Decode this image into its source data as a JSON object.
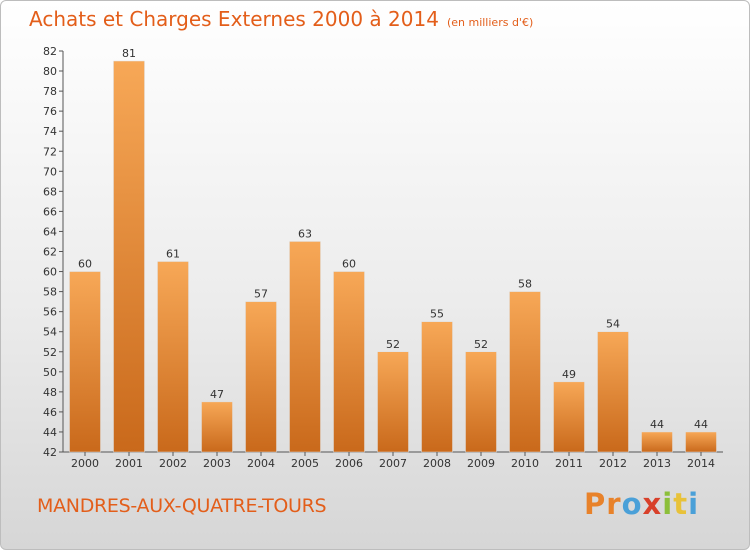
{
  "header": {
    "title": "Achats et Charges Externes 2000 à 2014",
    "subtitle": "(en milliers d'€)"
  },
  "footer": {
    "commune": "MANDRES-AUX-QUATRE-TOURS",
    "logo_letters": [
      "P",
      "r",
      "o",
      "x",
      "i",
      "t",
      "i"
    ],
    "logo_colors": [
      "#e8822a",
      "#e8822a",
      "#4aa0d8",
      "#d8402a",
      "#8cbf3a",
      "#e8c23a",
      "#4aa0d8"
    ]
  },
  "colors": {
    "accent": "#e35e1a",
    "bar_top": "#f7a857",
    "bar_bottom": "#c9691b"
  },
  "chart_data": {
    "type": "bar",
    "title": "Achats et Charges Externes 2000 à 2014",
    "subtitle": "(en milliers d'€)",
    "categories": [
      "2000",
      "2001",
      "2002",
      "2003",
      "2004",
      "2005",
      "2006",
      "2007",
      "2008",
      "2009",
      "2010",
      "2011",
      "2012",
      "2013",
      "2014"
    ],
    "values": [
      60,
      81,
      61,
      47,
      57,
      63,
      60,
      52,
      55,
      52,
      58,
      49,
      54,
      44,
      44
    ],
    "ylim": [
      42,
      82
    ],
    "yticks": [
      42,
      44,
      46,
      48,
      50,
      52,
      54,
      56,
      58,
      60,
      62,
      64,
      66,
      68,
      70,
      72,
      74,
      76,
      78,
      80,
      82
    ],
    "grid": false,
    "data_labels": true
  }
}
